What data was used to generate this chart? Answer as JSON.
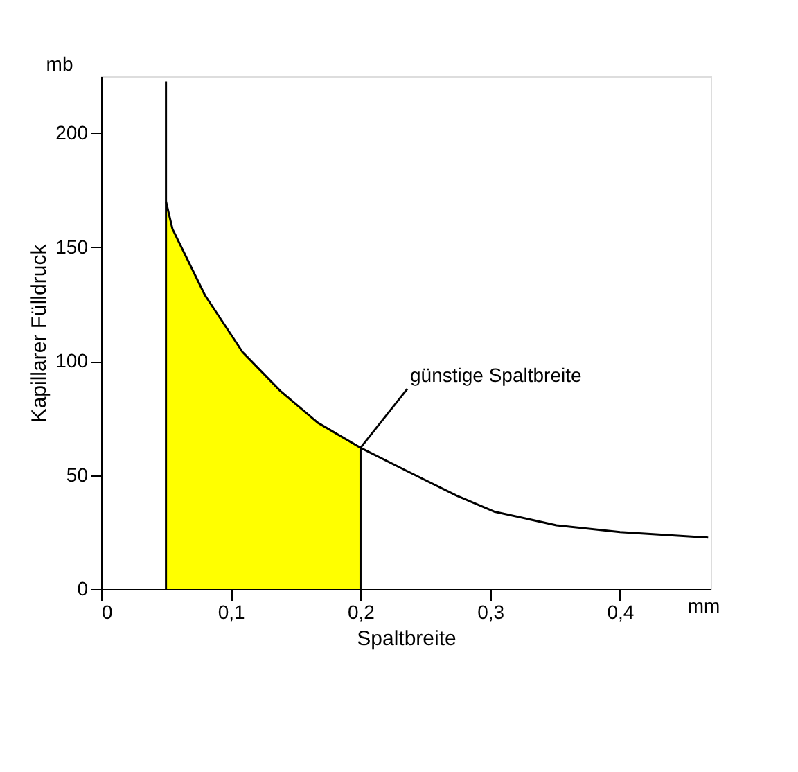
{
  "chart_data": {
    "type": "line",
    "xlabel": "Spaltbreite",
    "ylabel": "Kapillarer Fülldruck",
    "xlim": [
      0,
      0.47
    ],
    "ylim": [
      0,
      225
    ],
    "xticks": [
      0,
      {
        "value": 0.1,
        "label": "0,1"
      },
      {
        "value": 0.2,
        "label": "0,2"
      },
      {
        "value": 0.3,
        "label": "0,3"
      },
      {
        "value": 0.4,
        "label": "0,4"
      }
    ],
    "yticks": [
      0,
      50,
      100,
      150,
      200
    ],
    "series": [
      {
        "type": "area",
        "color": "#ffff00",
        "x": [
          0.05,
          0.055,
          0.08,
          0.109,
          0.138,
          0.167,
          0.2
        ],
        "values": [
          170,
          158,
          129,
          104,
          87,
          73,
          62
        ]
      },
      {
        "color": "#000000",
        "x": [
          0.05,
          0.055,
          0.08,
          0.109,
          0.138,
          0.167,
          0.2,
          0.235,
          0.274,
          0.303,
          0.351,
          0.4,
          0.468
        ],
        "values": [
          170,
          158,
          129,
          104,
          87,
          73,
          62,
          52,
          41,
          34,
          28,
          25,
          22.6
        ]
      }
    ],
    "ref_lines": [
      {
        "axis": "x",
        "value": 0.05,
        "color": "#000000"
      },
      {
        "axis": "x",
        "value": 0.2,
        "color": "#000000"
      }
    ],
    "annotations": [
      {
        "text": "günstige Spaltbreite",
        "x": 0.2,
        "y": 62
      },
      "mb",
      "mm"
    ],
    "grid": false,
    "marker": "none",
    "line_style": "solid"
  }
}
